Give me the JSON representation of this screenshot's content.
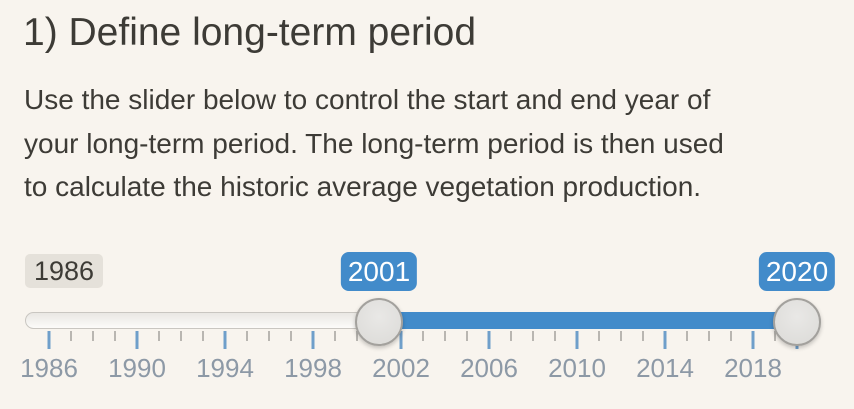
{
  "section": {
    "title": "1) Define long-term period",
    "description_lines": [
      "Use the slider below to control the start and end year of",
      "your long-term period. The long-term period is then used",
      "to calculate the historic average vegetation production."
    ]
  },
  "slider": {
    "min": 1986,
    "max": 2020,
    "from": 2001,
    "to": 2020,
    "min_label": "1986",
    "from_label": "2001",
    "to_label": "2020",
    "labeled_years": [
      1986,
      1990,
      1994,
      1998,
      2002,
      2006,
      2010,
      2014,
      2018
    ],
    "major_tick_every": 4
  },
  "colors": {
    "background": "#f8f4ee",
    "text": "#3d3b36",
    "accent": "#428bca",
    "badge_text": "#ffffff",
    "min_label_bg": "#e5e1da",
    "grid_major_tick": "#6f9fca",
    "grid_minor_tick": "#b9b6b1",
    "grid_label": "#8d99a6"
  }
}
